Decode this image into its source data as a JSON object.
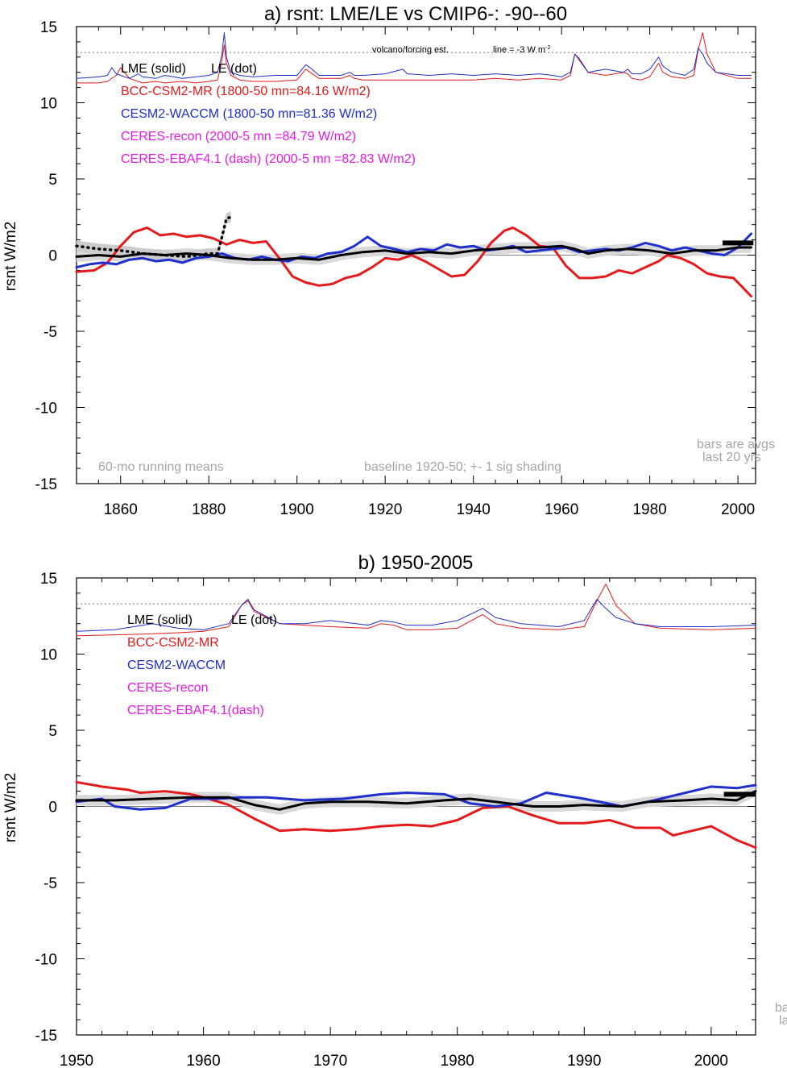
{
  "chart_data": [
    {
      "type": "line",
      "title": "a) rsnt: LME/LE vs CMIP6-: -90--60",
      "ylabel": "rsnt W/m2",
      "xlim": [
        1850,
        2004
      ],
      "ylim": [
        -15,
        15
      ],
      "xticks": [
        1860,
        1880,
        1900,
        1920,
        1940,
        1960,
        1980,
        2000
      ],
      "yticks": [
        15,
        10,
        5,
        0,
        -5,
        -10,
        -15
      ],
      "volcano_note": "volcano/forcing est.",
      "line_note": "line = -3 W m",
      "line_note_sup": "-2",
      "legend": [
        {
          "text": "LME (solid)",
          "color": "#000000"
        },
        {
          "text": "LE (dot)",
          "color": "#000000"
        },
        {
          "text": "BCC-CSM2-MR (1800-50 mn=84.16 W/m2)",
          "color": "#e41a1c"
        },
        {
          "text": "CESM2-WACCM (1800-50 mn=81.36 W/m2)",
          "color": "#1f2fcc"
        },
        {
          "text": "CERES-recon (2000-5 mn =84.79 W/m2)",
          "color": "#e619e6"
        },
        {
          "text": "CERES-EBAF4.1 (dash) (2000-5 mn =82.83 W/m2)",
          "color": "#e619e6"
        }
      ],
      "notes": [
        "60-mo running means",
        "baseline 1920-50; +- 1 sig shading",
        "bars are avgs",
        "last 20 yrs"
      ],
      "series": [
        {
          "name": "BCC-CSM2-MR",
          "color": "#e41a1c",
          "x": [
            1850,
            1854,
            1857,
            1860,
            1863,
            1866,
            1869,
            1872,
            1875,
            1878,
            1881,
            1884,
            1887,
            1890,
            1893,
            1896,
            1899,
            1902,
            1905,
            1908,
            1911,
            1914,
            1917,
            1920,
            1923,
            1926,
            1929,
            1932,
            1935,
            1938,
            1941,
            1944,
            1947,
            1949,
            1952,
            1955,
            1958,
            1961,
            1964,
            1967,
            1970,
            1973,
            1976,
            1979,
            1982,
            1984,
            1987,
            1990,
            1993,
            1996,
            1999,
            2001,
            2003
          ],
          "y": [
            -1.1,
            -1.0,
            -0.5,
            0.6,
            1.5,
            1.8,
            1.3,
            1.4,
            1.2,
            1.3,
            1.1,
            0.7,
            1.0,
            0.8,
            0.9,
            -0.2,
            -1.4,
            -1.8,
            -2.0,
            -1.9,
            -1.5,
            -1.3,
            -0.8,
            -0.2,
            -0.3,
            0.0,
            -0.4,
            -0.9,
            -1.4,
            -1.3,
            -0.4,
            0.8,
            1.6,
            1.8,
            1.3,
            0.6,
            0.5,
            -0.7,
            -1.5,
            -1.5,
            -1.4,
            -1.0,
            -1.2,
            -0.8,
            -0.4,
            0.0,
            -0.2,
            -0.6,
            -1.2,
            -1.4,
            -1.5,
            -2.1,
            -2.7
          ]
        },
        {
          "name": "CESM2-WACCM",
          "color": "#1f2fcc",
          "x": [
            1850,
            1853,
            1856,
            1859,
            1862,
            1865,
            1868,
            1871,
            1874,
            1877,
            1880,
            1883,
            1886,
            1889,
            1892,
            1895,
            1898,
            1901,
            1904,
            1907,
            1910,
            1913,
            1916,
            1919,
            1922,
            1925,
            1928,
            1931,
            1934,
            1937,
            1940,
            1943,
            1946,
            1949,
            1952,
            1955,
            1958,
            1961,
            1964,
            1967,
            1970,
            1973,
            1976,
            1979,
            1982,
            1985,
            1988,
            1991,
            1994,
            1997,
            2000,
            2003
          ],
          "y": [
            -0.8,
            -0.6,
            -0.5,
            -0.6,
            -0.3,
            -0.2,
            -0.4,
            -0.3,
            -0.5,
            -0.2,
            -0.1,
            0.1,
            -0.2,
            -0.3,
            -0.1,
            -0.3,
            -0.4,
            -0.1,
            -0.2,
            0.1,
            0.2,
            0.6,
            1.2,
            0.6,
            0.4,
            0.2,
            0.4,
            0.3,
            0.7,
            0.5,
            0.6,
            0.3,
            0.4,
            0.6,
            0.2,
            0.3,
            0.4,
            0.5,
            0.2,
            0.3,
            0.4,
            0.3,
            0.5,
            0.8,
            0.6,
            0.3,
            0.5,
            0.3,
            0.1,
            0.0,
            0.5,
            1.4
          ]
        },
        {
          "name": "LME",
          "color": "#000000",
          "x": [
            1850,
            1855,
            1860,
            1865,
            1870,
            1875,
            1880,
            1885,
            1890,
            1895,
            1900,
            1905,
            1910,
            1915,
            1920,
            1925,
            1930,
            1935,
            1940,
            1945,
            1950,
            1955,
            1960,
            1963,
            1966,
            1970,
            1975,
            1980,
            1985,
            1990,
            1995,
            2000,
            2003
          ],
          "y": [
            -0.1,
            0.0,
            -0.1,
            0.1,
            0.0,
            0.1,
            0.0,
            -0.2,
            -0.3,
            -0.3,
            -0.2,
            -0.3,
            0.0,
            0.2,
            0.3,
            0.1,
            0.2,
            0.1,
            0.3,
            0.4,
            0.5,
            0.5,
            0.6,
            0.4,
            0.1,
            0.3,
            0.4,
            0.3,
            0.1,
            0.3,
            0.3,
            0.5,
            0.5
          ]
        },
        {
          "name": "LE",
          "color": "#000000",
          "dotted": true,
          "x": [
            1850,
            1855,
            1860,
            1865,
            1870,
            1875,
            1880,
            1882,
            1883,
            1884,
            1885
          ],
          "y": [
            0.6,
            0.4,
            0.3,
            0.1,
            0.0,
            -0.1,
            0.1,
            0.1,
            1.2,
            2.4,
            2.5
          ]
        },
        {
          "name": "volcano BCC",
          "color": "#e41a1c",
          "thin": true,
          "x": [
            1850,
            1855,
            1857,
            1859,
            1860,
            1862,
            1864,
            1865,
            1868,
            1870,
            1874,
            1877,
            1880,
            1882,
            1883,
            1883.5,
            1884,
            1885,
            1887,
            1890,
            1895,
            1900,
            1902,
            1903,
            1905,
            1910,
            1912,
            1913,
            1915,
            1920,
            1925,
            1930,
            1935,
            1940,
            1945,
            1950,
            1955,
            1960,
            1962,
            1963,
            1964,
            1966,
            1968,
            1970,
            1974,
            1975,
            1976,
            1978,
            1980,
            1982,
            1983,
            1985,
            1988,
            1990,
            1991,
            1992,
            1993,
            1995,
            2000,
            2003
          ],
          "y": [
            11.3,
            11.3,
            11.4,
            11.8,
            12.3,
            11.6,
            11.4,
            11.3,
            11.4,
            11.3,
            11.4,
            11.3,
            11.4,
            11.5,
            12.8,
            13.8,
            12.6,
            11.8,
            11.5,
            11.4,
            11.4,
            11.5,
            12.2,
            12.0,
            11.6,
            11.6,
            11.8,
            11.6,
            11.5,
            11.5,
            11.5,
            11.5,
            11.5,
            11.5,
            11.6,
            11.5,
            11.6,
            11.5,
            11.8,
            13.2,
            12.8,
            12.0,
            11.9,
            11.8,
            12.0,
            11.9,
            11.6,
            11.5,
            11.7,
            12.6,
            12.0,
            11.7,
            11.6,
            11.8,
            13.5,
            14.6,
            13.2,
            12.0,
            11.6,
            11.6
          ]
        },
        {
          "name": "volcano CESM",
          "color": "#1f2fcc",
          "thin": true,
          "x": [
            1850,
            1855,
            1857,
            1858,
            1859,
            1860,
            1862,
            1864,
            1865,
            1868,
            1870,
            1874,
            1877,
            1880,
            1882,
            1883,
            1883.5,
            1884,
            1885,
            1887,
            1890,
            1895,
            1900,
            1902,
            1903,
            1905,
            1910,
            1912,
            1913,
            1915,
            1920,
            1924,
            1925,
            1930,
            1935,
            1940,
            1945,
            1950,
            1955,
            1958,
            1960,
            1962,
            1963,
            1964,
            1966,
            1968,
            1970,
            1974,
            1975,
            1976,
            1978,
            1980,
            1982,
            1983,
            1985,
            1988,
            1990,
            1991,
            1992,
            1993,
            1995,
            2000,
            2003
          ],
          "y": [
            11.6,
            11.7,
            11.8,
            12.3,
            11.9,
            11.8,
            11.6,
            11.9,
            11.7,
            11.6,
            11.8,
            11.6,
            11.7,
            11.8,
            12.0,
            13.2,
            14.6,
            13.0,
            12.0,
            11.8,
            11.7,
            11.8,
            11.8,
            12.5,
            12.3,
            11.8,
            11.8,
            12.0,
            11.8,
            11.8,
            11.9,
            12.2,
            11.9,
            11.8,
            11.9,
            11.8,
            11.9,
            11.8,
            11.9,
            11.8,
            11.7,
            12.0,
            13.2,
            12.9,
            12.0,
            12.1,
            12.2,
            12.0,
            12.2,
            11.9,
            11.9,
            12.2,
            13.0,
            12.4,
            12.0,
            11.8,
            12.2,
            13.6,
            13.2,
            12.6,
            12.0,
            11.8,
            11.8
          ]
        }
      ],
      "volcano_line": 13.3,
      "bars": [
        {
          "x0": 1996.5,
          "x1": 2003.5,
          "y": 0.8
        }
      ]
    },
    {
      "type": "line",
      "title": "b) 1950-2005",
      "ylabel": "rsnt W/m2",
      "xlim": [
        1950,
        2003.5
      ],
      "ylim": [
        -15,
        15
      ],
      "xticks": [
        1950,
        1960,
        1970,
        1980,
        1990,
        2000
      ],
      "yticks": [
        15,
        10,
        5,
        0,
        -5,
        -10,
        -15
      ],
      "legend": [
        {
          "text": "LME (solid)",
          "color": "#000000"
        },
        {
          "text": "LE (dot)",
          "color": "#000000"
        },
        {
          "text": "BCC-CSM2-MR",
          "color": "#e41a1c"
        },
        {
          "text": "CESM2-WACCM",
          "color": "#1f2fcc"
        },
        {
          "text": "CERES-recon",
          "color": "#e619e6"
        },
        {
          "text": "CERES-EBAF4.1(dash)",
          "color": "#e619e6"
        }
      ],
      "notes": [
        "ba",
        "la"
      ],
      "series": [
        {
          "name": "BCC-CSM2-MR",
          "color": "#e41a1c",
          "x": [
            1950,
            1952,
            1954,
            1955,
            1957,
            1959,
            1960,
            1962,
            1964,
            1966,
            1968,
            1970,
            1972,
            1974,
            1976,
            1978,
            1980,
            1982,
            1984,
            1986,
            1988,
            1990,
            1992,
            1994,
            1996,
            1997,
            1998,
            2000,
            2002,
            2003.5
          ],
          "y": [
            1.6,
            1.3,
            1.1,
            0.9,
            1.0,
            0.8,
            0.6,
            0.1,
            -0.8,
            -1.6,
            -1.5,
            -1.6,
            -1.5,
            -1.3,
            -1.2,
            -1.3,
            -0.9,
            -0.1,
            0.0,
            -0.6,
            -1.1,
            -1.1,
            -0.9,
            -1.4,
            -1.4,
            -1.9,
            -1.7,
            -1.3,
            -2.2,
            -2.7
          ]
        },
        {
          "name": "CESM2-WACCM",
          "color": "#1f2fcc",
          "x": [
            1950,
            1952,
            1953,
            1955,
            1957,
            1959,
            1961,
            1963,
            1965,
            1968,
            1971,
            1974,
            1976,
            1979,
            1981,
            1983,
            1985,
            1987,
            1990,
            1993,
            1995,
            1998,
            2000,
            2002,
            2003.5
          ],
          "y": [
            0.3,
            0.5,
            0.0,
            -0.2,
            -0.1,
            0.5,
            0.5,
            0.6,
            0.6,
            0.4,
            0.5,
            0.8,
            0.9,
            0.8,
            0.2,
            0.0,
            0.2,
            0.9,
            0.5,
            0.0,
            0.3,
            0.9,
            1.3,
            1.2,
            1.4
          ]
        },
        {
          "name": "LME",
          "color": "#000000",
          "x": [
            1950,
            1953,
            1956,
            1959,
            1962,
            1964,
            1966,
            1968,
            1970,
            1973,
            1976,
            1979,
            1981,
            1983,
            1986,
            1988,
            1990,
            1993,
            1995,
            1998,
            2000,
            2002,
            2003.5
          ],
          "y": [
            0.4,
            0.4,
            0.5,
            0.6,
            0.6,
            0.1,
            -0.2,
            0.2,
            0.3,
            0.3,
            0.2,
            0.4,
            0.5,
            0.3,
            0.0,
            0.0,
            0.1,
            0.0,
            0.3,
            0.4,
            0.5,
            0.4,
            1.0
          ]
        },
        {
          "name": "volcano BCC",
          "color": "#e41a1c",
          "thin": true,
          "x": [
            1950,
            1955,
            1958,
            1960,
            1962,
            1963,
            1963.5,
            1964,
            1966,
            1968,
            1970,
            1973,
            1974,
            1975,
            1976,
            1978,
            1980,
            1982,
            1983,
            1985,
            1988,
            1990,
            1991,
            1991.7,
            1992.5,
            1994,
            1996,
            2000,
            2003.5
          ],
          "y": [
            11.2,
            11.3,
            11.4,
            11.5,
            11.8,
            13.2,
            13.5,
            12.8,
            12.0,
            11.9,
            11.8,
            11.7,
            12.0,
            11.9,
            11.6,
            11.6,
            11.7,
            12.6,
            12.0,
            11.7,
            11.6,
            11.8,
            13.5,
            14.6,
            13.2,
            12.0,
            11.7,
            11.6,
            11.7
          ]
        },
        {
          "name": "volcano CESM",
          "color": "#1f2fcc",
          "thin": true,
          "x": [
            1950,
            1953,
            1956,
            1958,
            1960,
            1962,
            1963,
            1963.5,
            1964,
            1966,
            1968,
            1970,
            1973,
            1974,
            1975,
            1976,
            1978,
            1980,
            1982,
            1983,
            1985,
            1988,
            1990,
            1991,
            1991.7,
            1992.5,
            1994,
            1996,
            2000,
            2003.5
          ],
          "y": [
            11.5,
            11.6,
            12.0,
            11.7,
            11.6,
            12.0,
            13.2,
            13.6,
            12.9,
            12.0,
            12.0,
            12.2,
            11.9,
            12.2,
            12.1,
            11.9,
            11.9,
            12.2,
            13.0,
            12.4,
            12.0,
            11.8,
            12.2,
            13.6,
            13.0,
            12.4,
            12.0,
            11.8,
            11.8,
            11.9
          ]
        }
      ],
      "volcano_line": 13.3,
      "bars": [
        {
          "x0": 2001,
          "x1": 2003.5,
          "y": 0.8
        }
      ]
    }
  ]
}
